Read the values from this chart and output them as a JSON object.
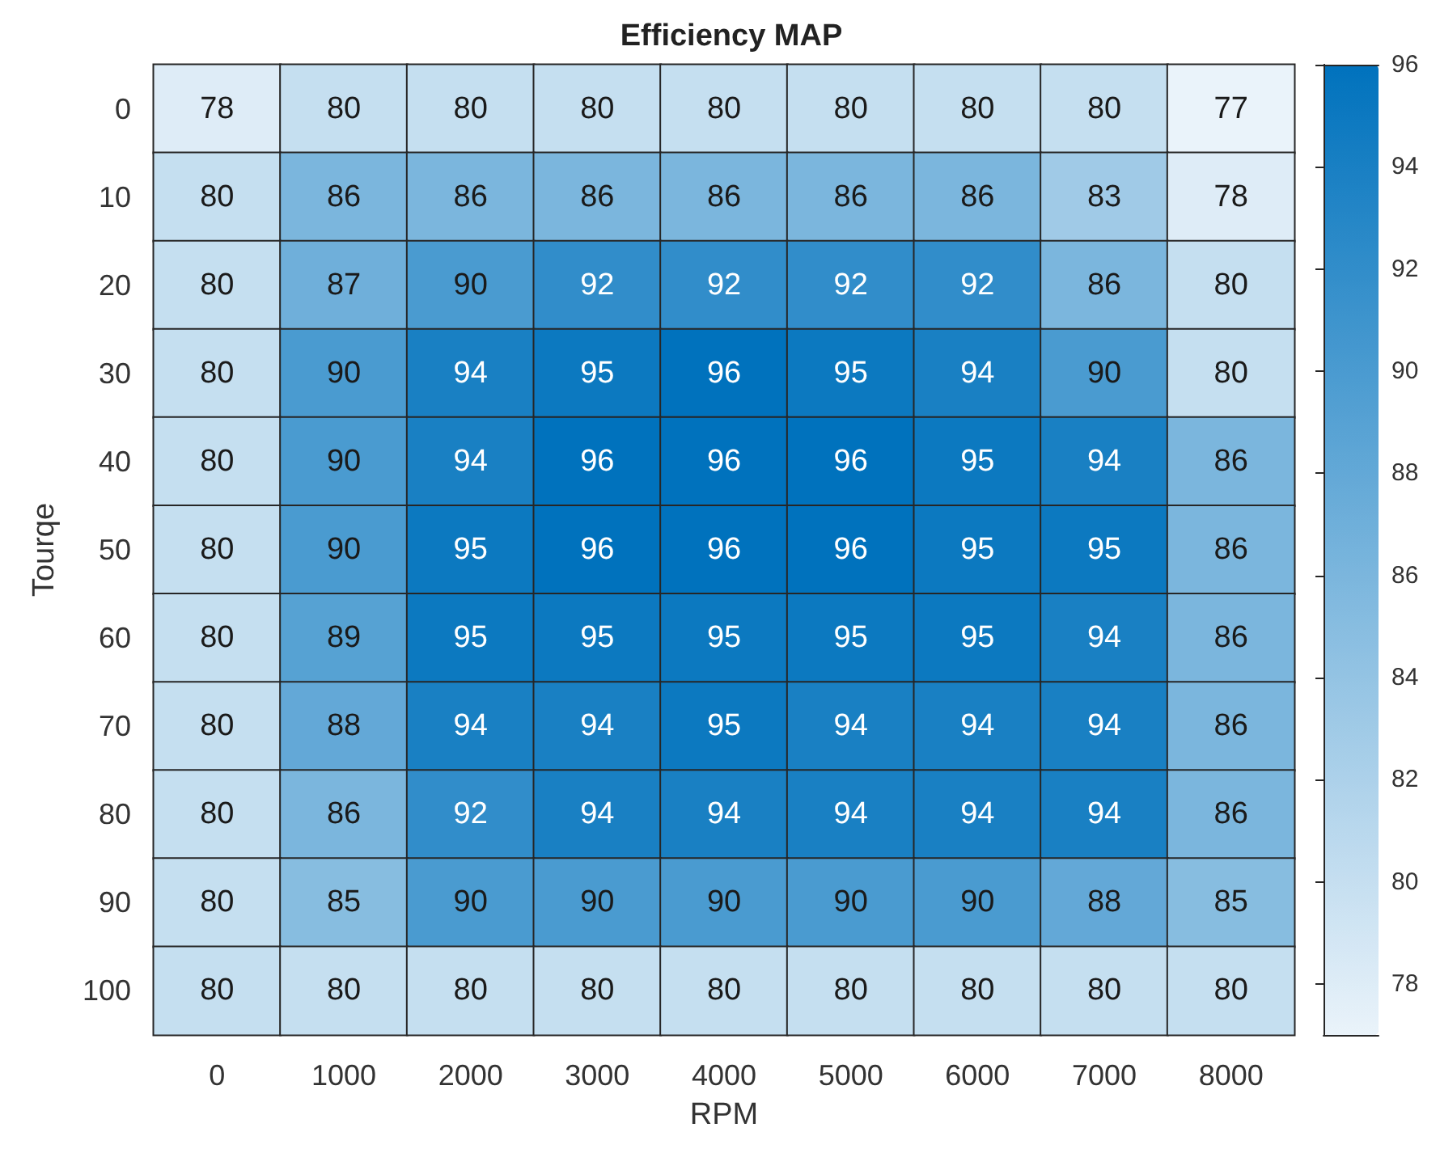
{
  "chart_data": {
    "type": "heatmap",
    "title": "Efficiency MAP",
    "xlabel": "RPM",
    "ylabel": "Tourqe",
    "categories": [
      "0",
      "1000",
      "2000",
      "3000",
      "4000",
      "5000",
      "6000",
      "7000",
      "8000"
    ],
    "y_categories": [
      "0",
      "10",
      "20",
      "30",
      "40",
      "50",
      "60",
      "70",
      "80",
      "90",
      "100"
    ],
    "cells": [
      [
        78,
        80,
        80,
        80,
        80,
        80,
        80,
        80,
        77
      ],
      [
        80,
        86,
        86,
        86,
        86,
        86,
        86,
        83,
        78
      ],
      [
        80,
        87,
        90,
        92,
        92,
        92,
        92,
        86,
        80
      ],
      [
        80,
        90,
        94,
        95,
        96,
        95,
        94,
        90,
        80
      ],
      [
        80,
        90,
        94,
        96,
        96,
        96,
        95,
        94,
        86
      ],
      [
        80,
        90,
        95,
        96,
        96,
        96,
        95,
        95,
        86
      ],
      [
        80,
        89,
        95,
        95,
        95,
        95,
        95,
        94,
        86
      ],
      [
        80,
        88,
        94,
        94,
        95,
        94,
        94,
        94,
        86
      ],
      [
        80,
        86,
        92,
        94,
        94,
        94,
        94,
        94,
        86
      ],
      [
        80,
        85,
        90,
        90,
        90,
        90,
        90,
        88,
        85
      ],
      [
        80,
        80,
        80,
        80,
        80,
        80,
        80,
        80,
        80
      ]
    ],
    "clim": [
      77,
      96
    ],
    "cticks": [
      78,
      80,
      82,
      84,
      86,
      88,
      90,
      92,
      94,
      96
    ],
    "data_labels": true
  }
}
